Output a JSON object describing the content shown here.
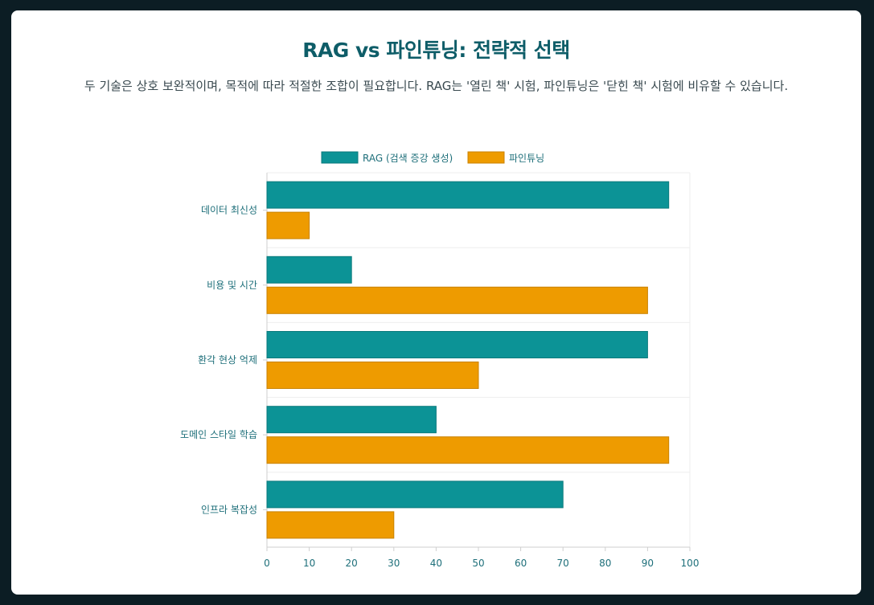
{
  "title": "RAG vs 파인튜닝: 전략적 선택",
  "subtitle": "두 기술은 상호 보완적이며, 목적에 따라 적절한 조합이 필요합니다. RAG는 '열린 책' 시험, 파인튜닝은 '닫힌 책' 시험에 비유할 수 있습니다.",
  "colors": {
    "rag": "#0c9396",
    "finetune": "#ee9b00",
    "label": "#1e6f7a"
  },
  "chart_data": {
    "type": "bar",
    "orientation": "horizontal",
    "categories": [
      "데이터 최신성",
      "비용 및 시간",
      "환각 현상 억제",
      "도메인 스타일 학습",
      "인프라 복잡성"
    ],
    "series": [
      {
        "name": "RAG (검색 증강 생성)",
        "values": [
          95,
          20,
          90,
          40,
          70
        ]
      },
      {
        "name": "파인튜닝",
        "values": [
          10,
          90,
          50,
          95,
          30
        ]
      }
    ],
    "xlim": [
      0,
      100
    ],
    "xticks": [
      "0",
      "10",
      "20",
      "30",
      "40",
      "50",
      "60",
      "70",
      "80",
      "90",
      "100"
    ],
    "grid": true,
    "legend_position": "top"
  }
}
